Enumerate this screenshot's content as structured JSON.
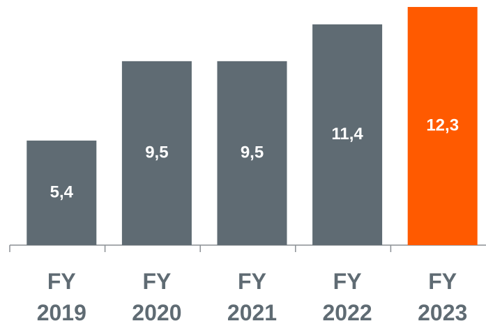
{
  "chart_data": {
    "type": "bar",
    "categories": [
      "FY 2019",
      "FY 2020",
      "FY 2021",
      "FY 2022",
      "FY 2023"
    ],
    "values": [
      5.4,
      9.5,
      9.5,
      11.4,
      12.3
    ],
    "value_labels": [
      "5,4",
      "9,5",
      "9,5",
      "11,4",
      "12,3"
    ],
    "colors": [
      "#5f6b73",
      "#5f6b73",
      "#5f6b73",
      "#5f6b73",
      "#ff5a00"
    ],
    "ylim": [
      0,
      12.3
    ]
  }
}
